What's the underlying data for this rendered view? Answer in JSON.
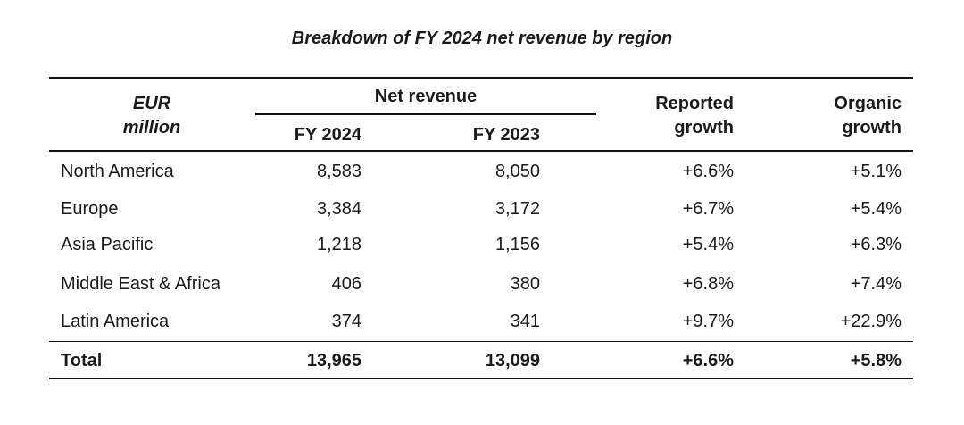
{
  "title": "Breakdown of FY 2024 net revenue by region",
  "header": {
    "unit_line1": "EUR",
    "unit_line2": "million",
    "group_label": "Net revenue",
    "col_fy2024": "FY 2024",
    "col_fy2023": "FY 2023",
    "reported_line1": "Reported",
    "reported_line2": "growth",
    "organic_line1": "Organic",
    "organic_line2": "growth"
  },
  "rows": [
    {
      "region": "North America",
      "fy2024": "8,583",
      "fy2023": "8,050",
      "reported": "+6.6%",
      "organic": "+5.1%"
    },
    {
      "region": "Europe",
      "fy2024": "3,384",
      "fy2023": "3,172",
      "reported": "+6.7%",
      "organic": "+5.4%"
    },
    {
      "region": "Asia Pacific",
      "fy2024": "1,218",
      "fy2023": "1,156",
      "reported": "+5.4%",
      "organic": "+6.3%"
    },
    {
      "region": "Middle East & Africa",
      "fy2024": "406",
      "fy2023": "380",
      "reported": "+6.8%",
      "organic": "+7.4%"
    },
    {
      "region": "Latin America",
      "fy2024": "374",
      "fy2023": "341",
      "reported": "+9.7%",
      "organic": "+22.9%"
    }
  ],
  "total": {
    "region": "Total",
    "fy2024": "13,965",
    "fy2023": "13,099",
    "reported": "+6.6%",
    "organic": "+5.8%"
  }
}
